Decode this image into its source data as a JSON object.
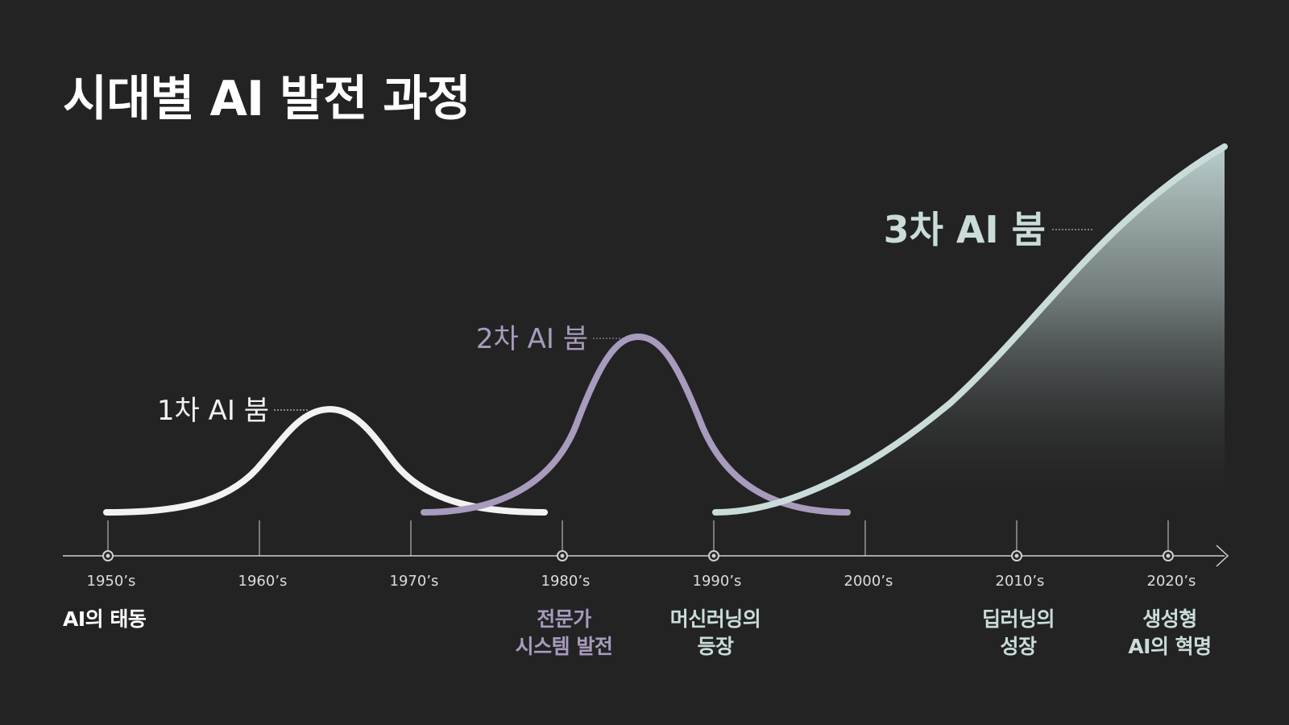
{
  "title": "시대별 AI 발전 과정",
  "colors": {
    "background": "#232323",
    "boom1": "#f2f2f2",
    "boom2": "#a89bbd",
    "boom3": "#c9dcda",
    "axis": "#d0d0d0"
  },
  "booms": [
    {
      "label": "1차 AI 붐",
      "color": "#f2f2f2"
    },
    {
      "label": "2차 AI 붐",
      "color": "#a89bbd"
    },
    {
      "label": "3차 AI 붐",
      "color": "#c9dcda"
    }
  ],
  "axis": {
    "ticks": [
      "1950’s",
      "1960’s",
      "1970’s",
      "1980’s",
      "1990’s",
      "2000’s",
      "2010’s",
      "2020’s"
    ]
  },
  "events": [
    {
      "tick": "1950’s",
      "lines": [
        "AI의 태동"
      ],
      "color": "#ffffff"
    },
    {
      "tick": "1980’s",
      "lines": [
        "전문가",
        "시스템 발전"
      ],
      "color": "#a89bbd"
    },
    {
      "tick": "1990’s",
      "lines": [
        "머신러닝의",
        "등장"
      ],
      "color": "#c9dcda"
    },
    {
      "tick": "2010’s",
      "lines": [
        "딥러닝의",
        "성장"
      ],
      "color": "#c9dcda"
    },
    {
      "tick": "2020’s",
      "lines": [
        "생성형",
        "AI의 혁명"
      ],
      "color": "#c9dcda"
    }
  ]
}
